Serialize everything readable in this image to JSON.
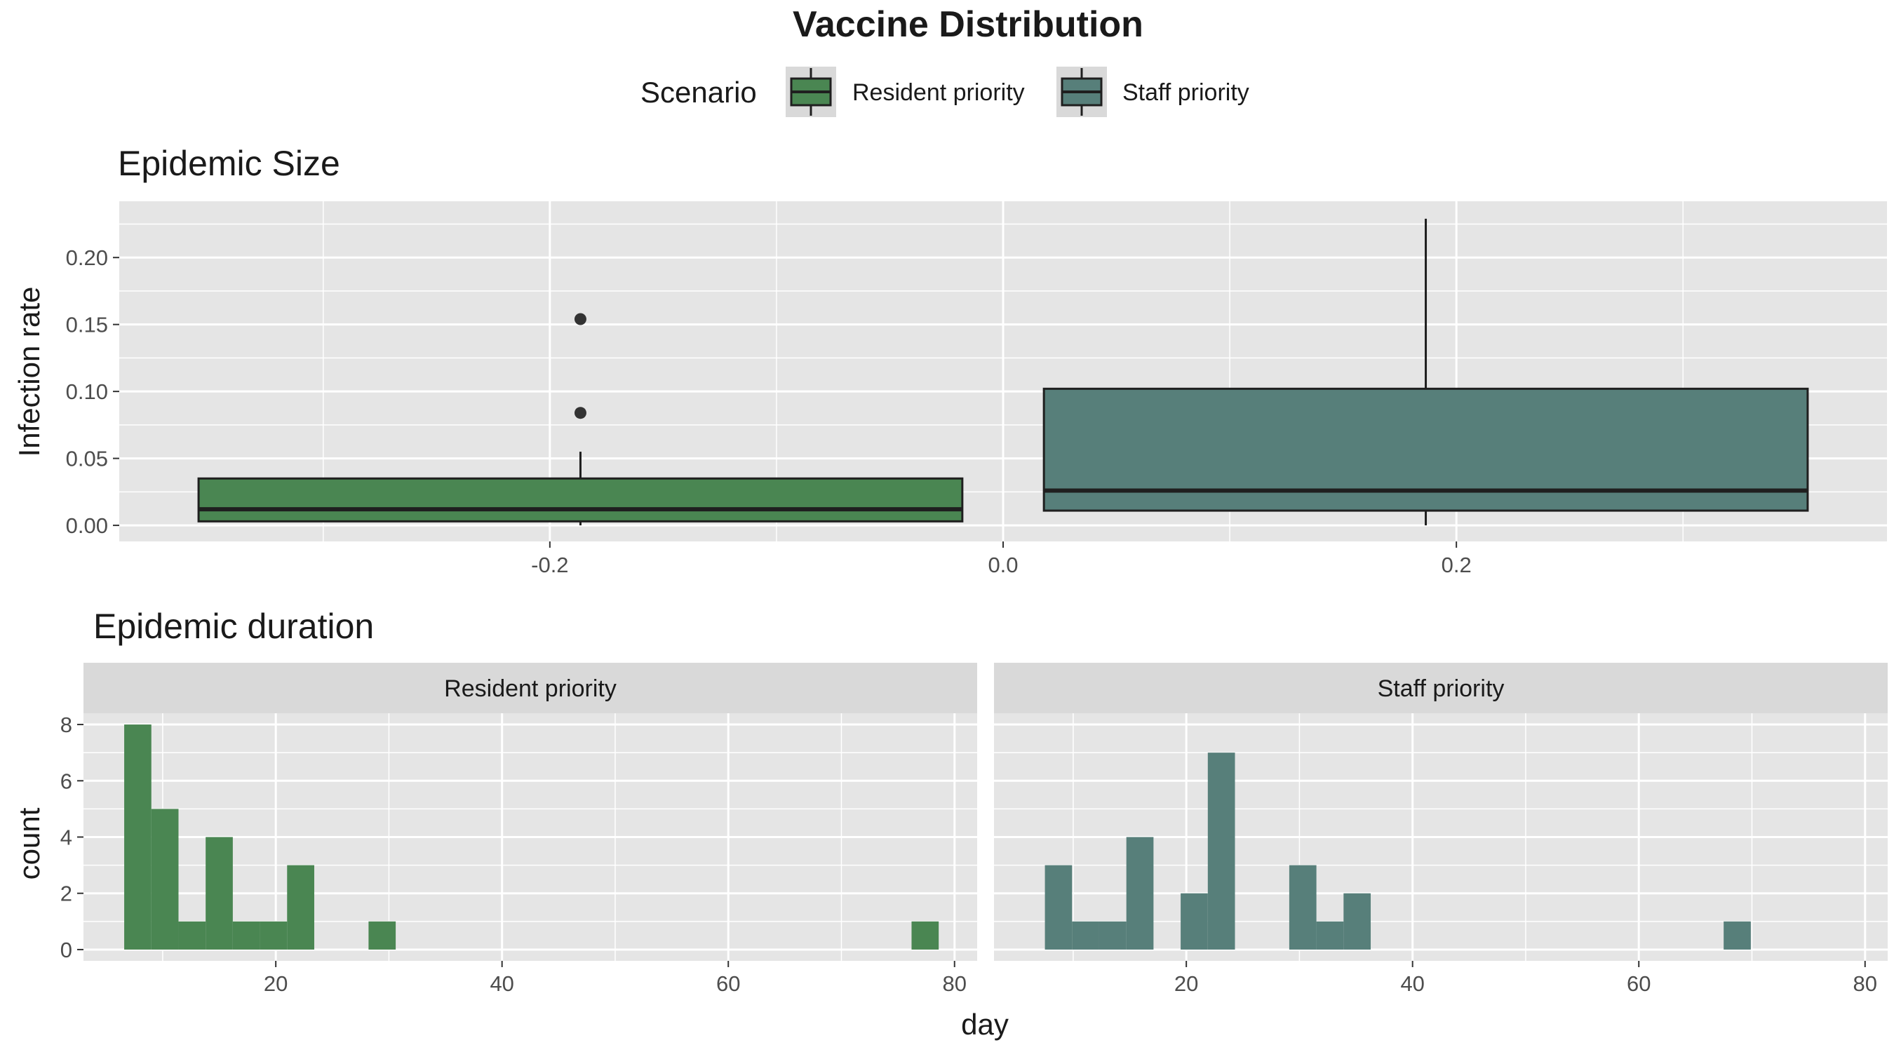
{
  "title": "Vaccine Distribution",
  "legend": {
    "title": "Scenario",
    "items": [
      {
        "label": "Resident priority",
        "color": "#4a8652"
      },
      {
        "label": "Staff priority",
        "color": "#577f7a"
      }
    ]
  },
  "colors": {
    "panel_bg": "#e5e5e5",
    "grid": "#ffffff",
    "strip_bg": "#d9d9d9",
    "outline": "#1f1f1f"
  },
  "chart_data": [
    {
      "type": "boxplot",
      "title": "Epidemic Size",
      "xlabel": "",
      "ylabel": "Infection rate",
      "xlim": [
        -0.39,
        0.39
      ],
      "ylim": [
        -0.012,
        0.242
      ],
      "x_ticks": [
        -0.2,
        0.0,
        0.2
      ],
      "x_tick_labels": [
        "-0.2",
        "0.0",
        "0.2"
      ],
      "y_ticks": [
        0.0,
        0.05,
        0.1,
        0.15,
        0.2
      ],
      "y_tick_labels": [
        "0.00",
        "0.05",
        "0.10",
        "0.15",
        "0.20"
      ],
      "grid": true,
      "series": [
        {
          "name": "Resident priority",
          "color": "#4a8652",
          "x_range": [
            -0.355,
            -0.018
          ],
          "x_center": -0.1865,
          "whisker_low": 0.0,
          "q1": 0.003,
          "median": 0.012,
          "q3": 0.035,
          "whisker_high": 0.055,
          "outliers": [
            0.084,
            0.154
          ]
        },
        {
          "name": "Staff priority",
          "color": "#577f7a",
          "x_range": [
            0.018,
            0.355
          ],
          "x_center": 0.1865,
          "whisker_low": 0.0,
          "q1": 0.011,
          "median": 0.026,
          "q3": 0.102,
          "whisker_high": 0.229,
          "outliers": []
        }
      ]
    },
    {
      "type": "histogram",
      "title": "Epidemic duration",
      "xlabel": "day",
      "ylabel": "count",
      "bin_width": 2.4,
      "xlim": [
        3.0,
        82.0
      ],
      "ylim": [
        -0.4,
        8.4
      ],
      "x_ticks": [
        20,
        40,
        60,
        80
      ],
      "x_tick_labels": [
        "20",
        "40",
        "60",
        "80"
      ],
      "y_ticks": [
        0,
        2,
        4,
        6,
        8
      ],
      "y_tick_labels": [
        "0",
        "2",
        "4",
        "6",
        "8"
      ],
      "grid": true,
      "facets": [
        {
          "name": "Resident priority",
          "color": "#4a8652",
          "bins": [
            {
              "x": 7.8,
              "count": 8
            },
            {
              "x": 10.2,
              "count": 5
            },
            {
              "x": 12.6,
              "count": 1
            },
            {
              "x": 15.0,
              "count": 4
            },
            {
              "x": 17.4,
              "count": 1
            },
            {
              "x": 19.8,
              "count": 1
            },
            {
              "x": 22.2,
              "count": 3
            },
            {
              "x": 29.4,
              "count": 1
            },
            {
              "x": 77.4,
              "count": 1
            }
          ]
        },
        {
          "name": "Staff priority",
          "color": "#577f7a",
          "bins": [
            {
              "x": 8.7,
              "count": 3
            },
            {
              "x": 11.1,
              "count": 1
            },
            {
              "x": 13.5,
              "count": 1
            },
            {
              "x": 15.9,
              "count": 4
            },
            {
              "x": 18.3,
              "count": 0
            },
            {
              "x": 20.7,
              "count": 2
            },
            {
              "x": 23.1,
              "count": 7
            },
            {
              "x": 30.3,
              "count": 3
            },
            {
              "x": 32.7,
              "count": 1
            },
            {
              "x": 35.1,
              "count": 2
            },
            {
              "x": 68.7,
              "count": 1
            }
          ]
        }
      ]
    }
  ]
}
